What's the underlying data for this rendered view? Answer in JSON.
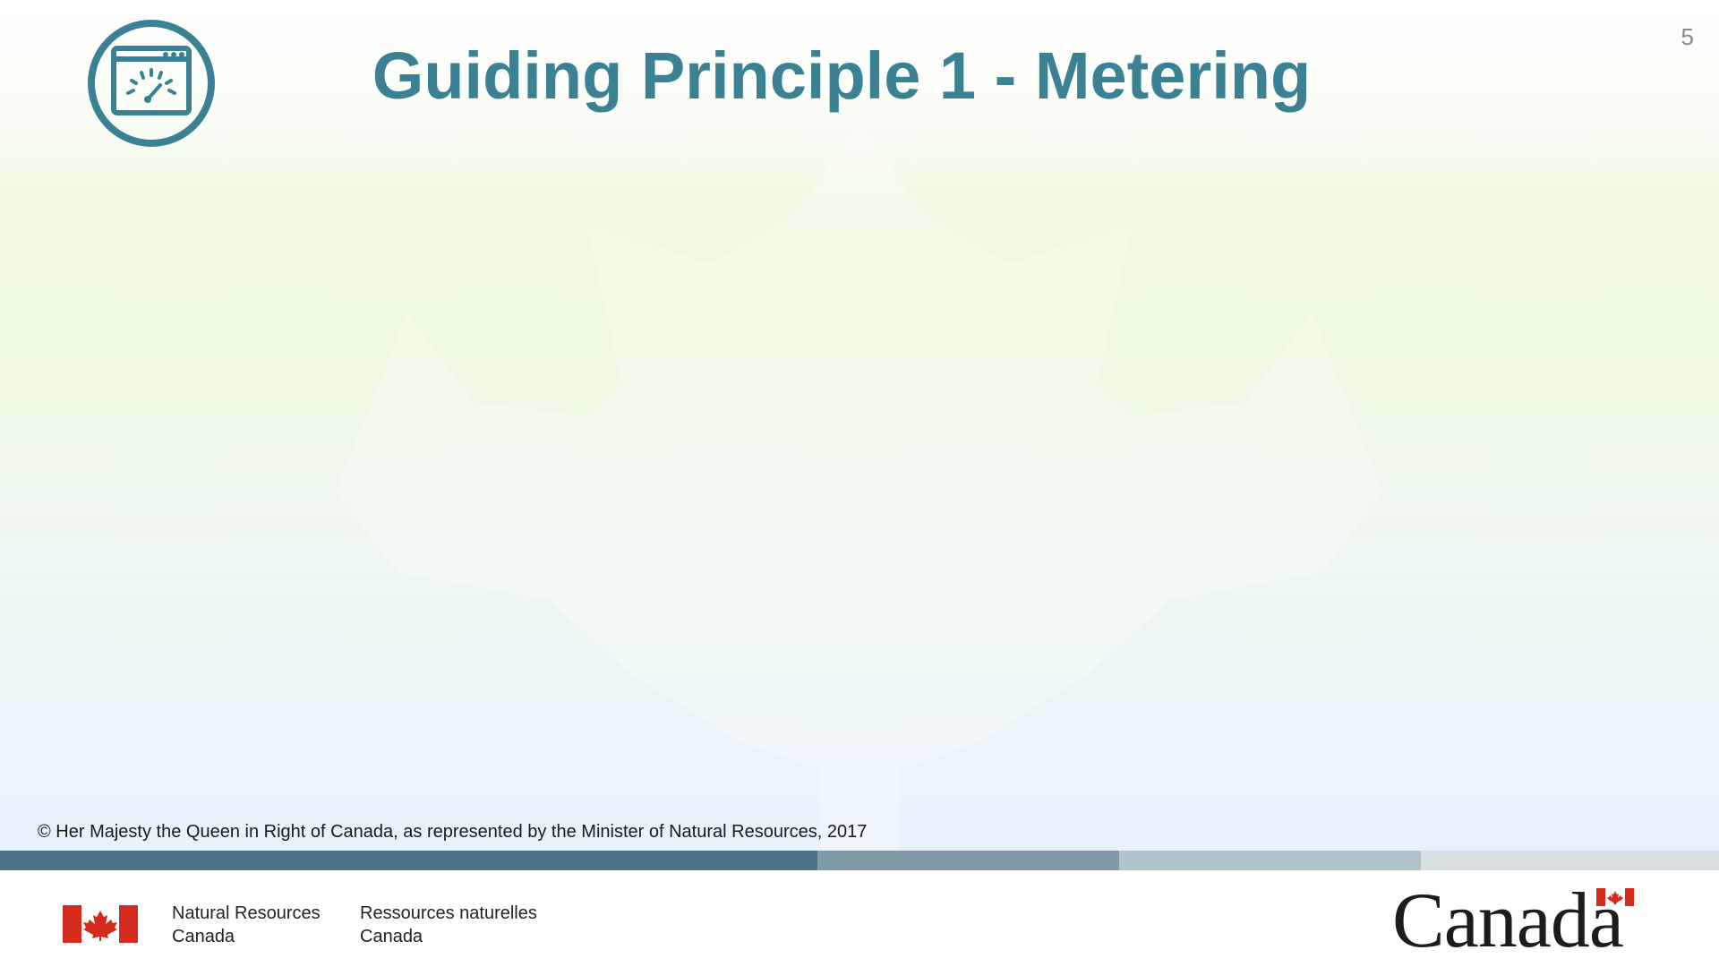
{
  "slide": {
    "page_number": "5",
    "title": "Guiding Principle 1 - Metering",
    "icon": "dashboard-gauge-icon",
    "copyright": "© Her Majesty the Queen in Right of Canada, as represented by the Minister of Natural Resources, 2017"
  },
  "footer": {
    "department_en_line1": "Natural Resources",
    "department_en_line2": "Canada",
    "department_fr_line1": "Ressources naturelles",
    "department_fr_line2": "Canada",
    "wordmark": "Canada"
  },
  "colors": {
    "title": "#3b8194",
    "flag_red": "#d52b1e",
    "bar_1": "#4a7387",
    "bar_2": "#7f9aa7",
    "bar_3": "#b1c2ca",
    "bar_4": "#d8dfe2"
  }
}
